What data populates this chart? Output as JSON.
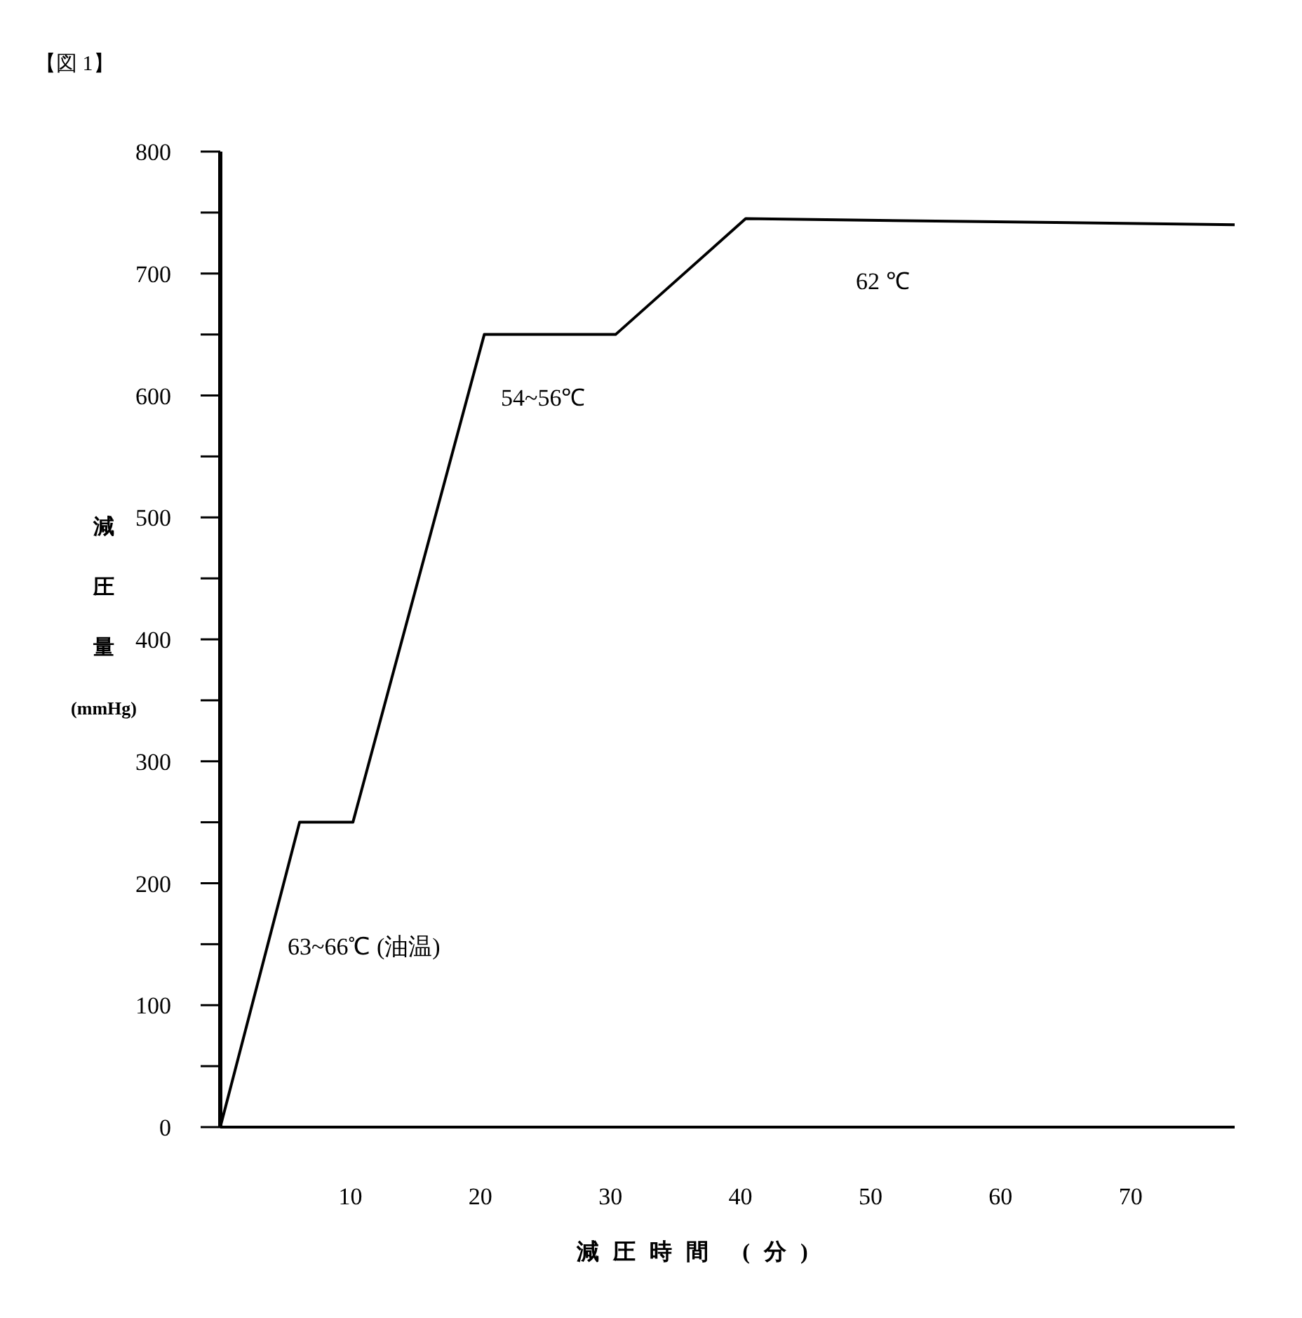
{
  "chart_data": {
    "type": "line",
    "title": "【図 1】",
    "ylabel": "減圧量 (mmHg)",
    "xlabel": "減圧時間 (分)",
    "x": [
      0,
      6.1,
      10.2,
      20.3,
      30.4,
      40.4,
      78
    ],
    "values": [
      0,
      250,
      250,
      650,
      650,
      745,
      740
    ],
    "color": "#000000",
    "xlim": [
      0,
      78
    ],
    "ylim": [
      0,
      800
    ],
    "xticks": [
      10,
      20,
      30,
      40,
      50,
      60,
      70
    ],
    "yticks": [
      0,
      {
        "value": 50,
        "label": null
      },
      100,
      {
        "value": 150,
        "label": null
      },
      200,
      {
        "value": 250,
        "label": null
      },
      300,
      {
        "value": 350,
        "label": null
      },
      400,
      {
        "value": 450,
        "label": null
      },
      500,
      {
        "value": 550,
        "label": null
      },
      600,
      {
        "value": 650,
        "label": null
      },
      700,
      {
        "value": 750,
        "label": null
      },
      800
    ],
    "annotations": [
      "63~66℃ (油温)",
      "54~56℃",
      "62 ℃"
    ]
  }
}
